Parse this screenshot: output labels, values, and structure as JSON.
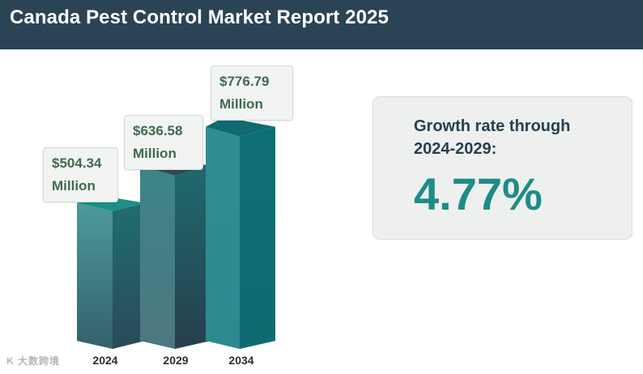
{
  "header": {
    "title": "Canada Pest Control Market Report 2025"
  },
  "chart_data": {
    "type": "bar",
    "title": "Canada Pest Control Market Report 2025",
    "categories": [
      "2024",
      "2029",
      "2034"
    ],
    "values": [
      504.34,
      636.58,
      776.79
    ],
    "unit": "USD Million",
    "data_labels": [
      "$504.34 Million",
      "$636.58 Million",
      "$776.79 Million"
    ],
    "label_line1": [
      "$504.34",
      "$636.58",
      "$776.79"
    ],
    "label_line2": [
      "Million",
      "Million",
      "Million"
    ],
    "ylim": [
      0,
      800
    ],
    "xlabel": "",
    "ylabel": ""
  },
  "growth": {
    "label": "Growth rate through 2024-2029:",
    "value": "4.77%"
  },
  "colors": {
    "header_bg": "#2b4455",
    "bar_top": "#1a9087",
    "bar_front_light": "#3d8a8f",
    "bar_side_dark": "#2c4c5c",
    "growth_value": "#1f8c85",
    "label_text": "#3d6b4f"
  },
  "watermark": "K 大数跨境"
}
